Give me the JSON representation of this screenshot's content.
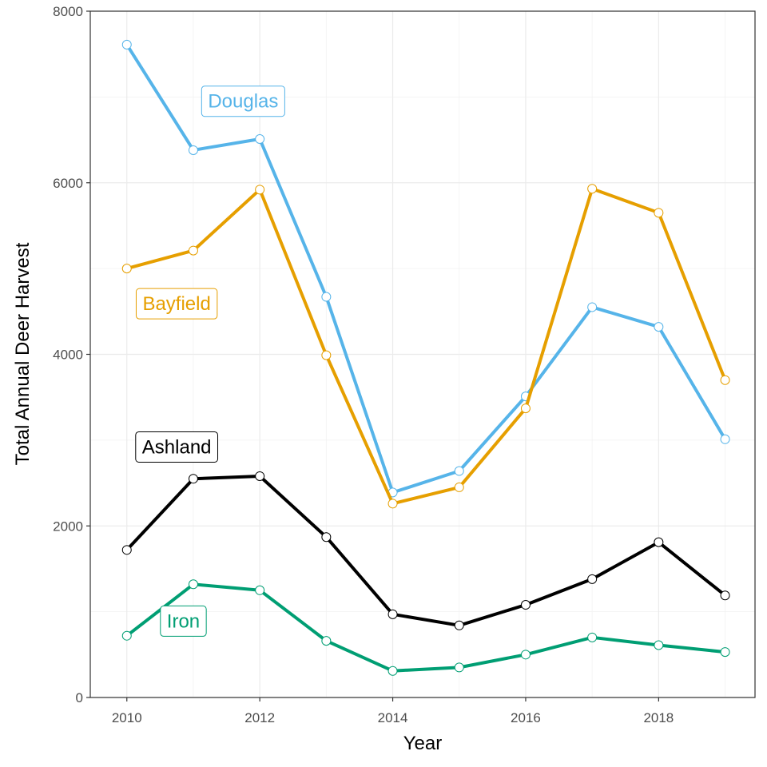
{
  "chart_data": {
    "type": "line",
    "title": "",
    "xlabel": "Year",
    "ylabel": "Total Annual Deer Harvest",
    "x": [
      2010,
      2011,
      2012,
      2013,
      2014,
      2015,
      2016,
      2017,
      2018,
      2019
    ],
    "xlim": [
      2009.45,
      2019.45
    ],
    "ylim": [
      0,
      8000
    ],
    "x_ticks": [
      "2010",
      "2012",
      "2014",
      "2016",
      "2018"
    ],
    "y_ticks": [
      "0",
      "2000",
      "4000",
      "6000",
      "8000"
    ],
    "grid": true,
    "legend": "direct labels",
    "series": [
      {
        "name": "Douglas",
        "color": "#56B4E9",
        "label_at": [
          2011.75,
          6950
        ],
        "values": [
          7610,
          6380,
          6510,
          4670,
          2390,
          2640,
          3510,
          4550,
          4320,
          3010
        ]
      },
      {
        "name": "Bayfield",
        "color": "#E69F00",
        "label_at": [
          2010.75,
          4590
        ],
        "values": [
          5000,
          5210,
          5920,
          3990,
          2260,
          2450,
          3370,
          5930,
          5650,
          3700
        ]
      },
      {
        "name": "Ashland",
        "color": "#000000",
        "label_at": [
          2010.75,
          2920
        ],
        "values": [
          1720,
          2550,
          2580,
          1870,
          970,
          840,
          1080,
          1380,
          1810,
          1190
        ]
      },
      {
        "name": "Iron",
        "color": "#009E73",
        "label_at": [
          2010.85,
          890
        ],
        "values": [
          720,
          1320,
          1250,
          660,
          310,
          350,
          500,
          700,
          610,
          530
        ]
      }
    ]
  }
}
